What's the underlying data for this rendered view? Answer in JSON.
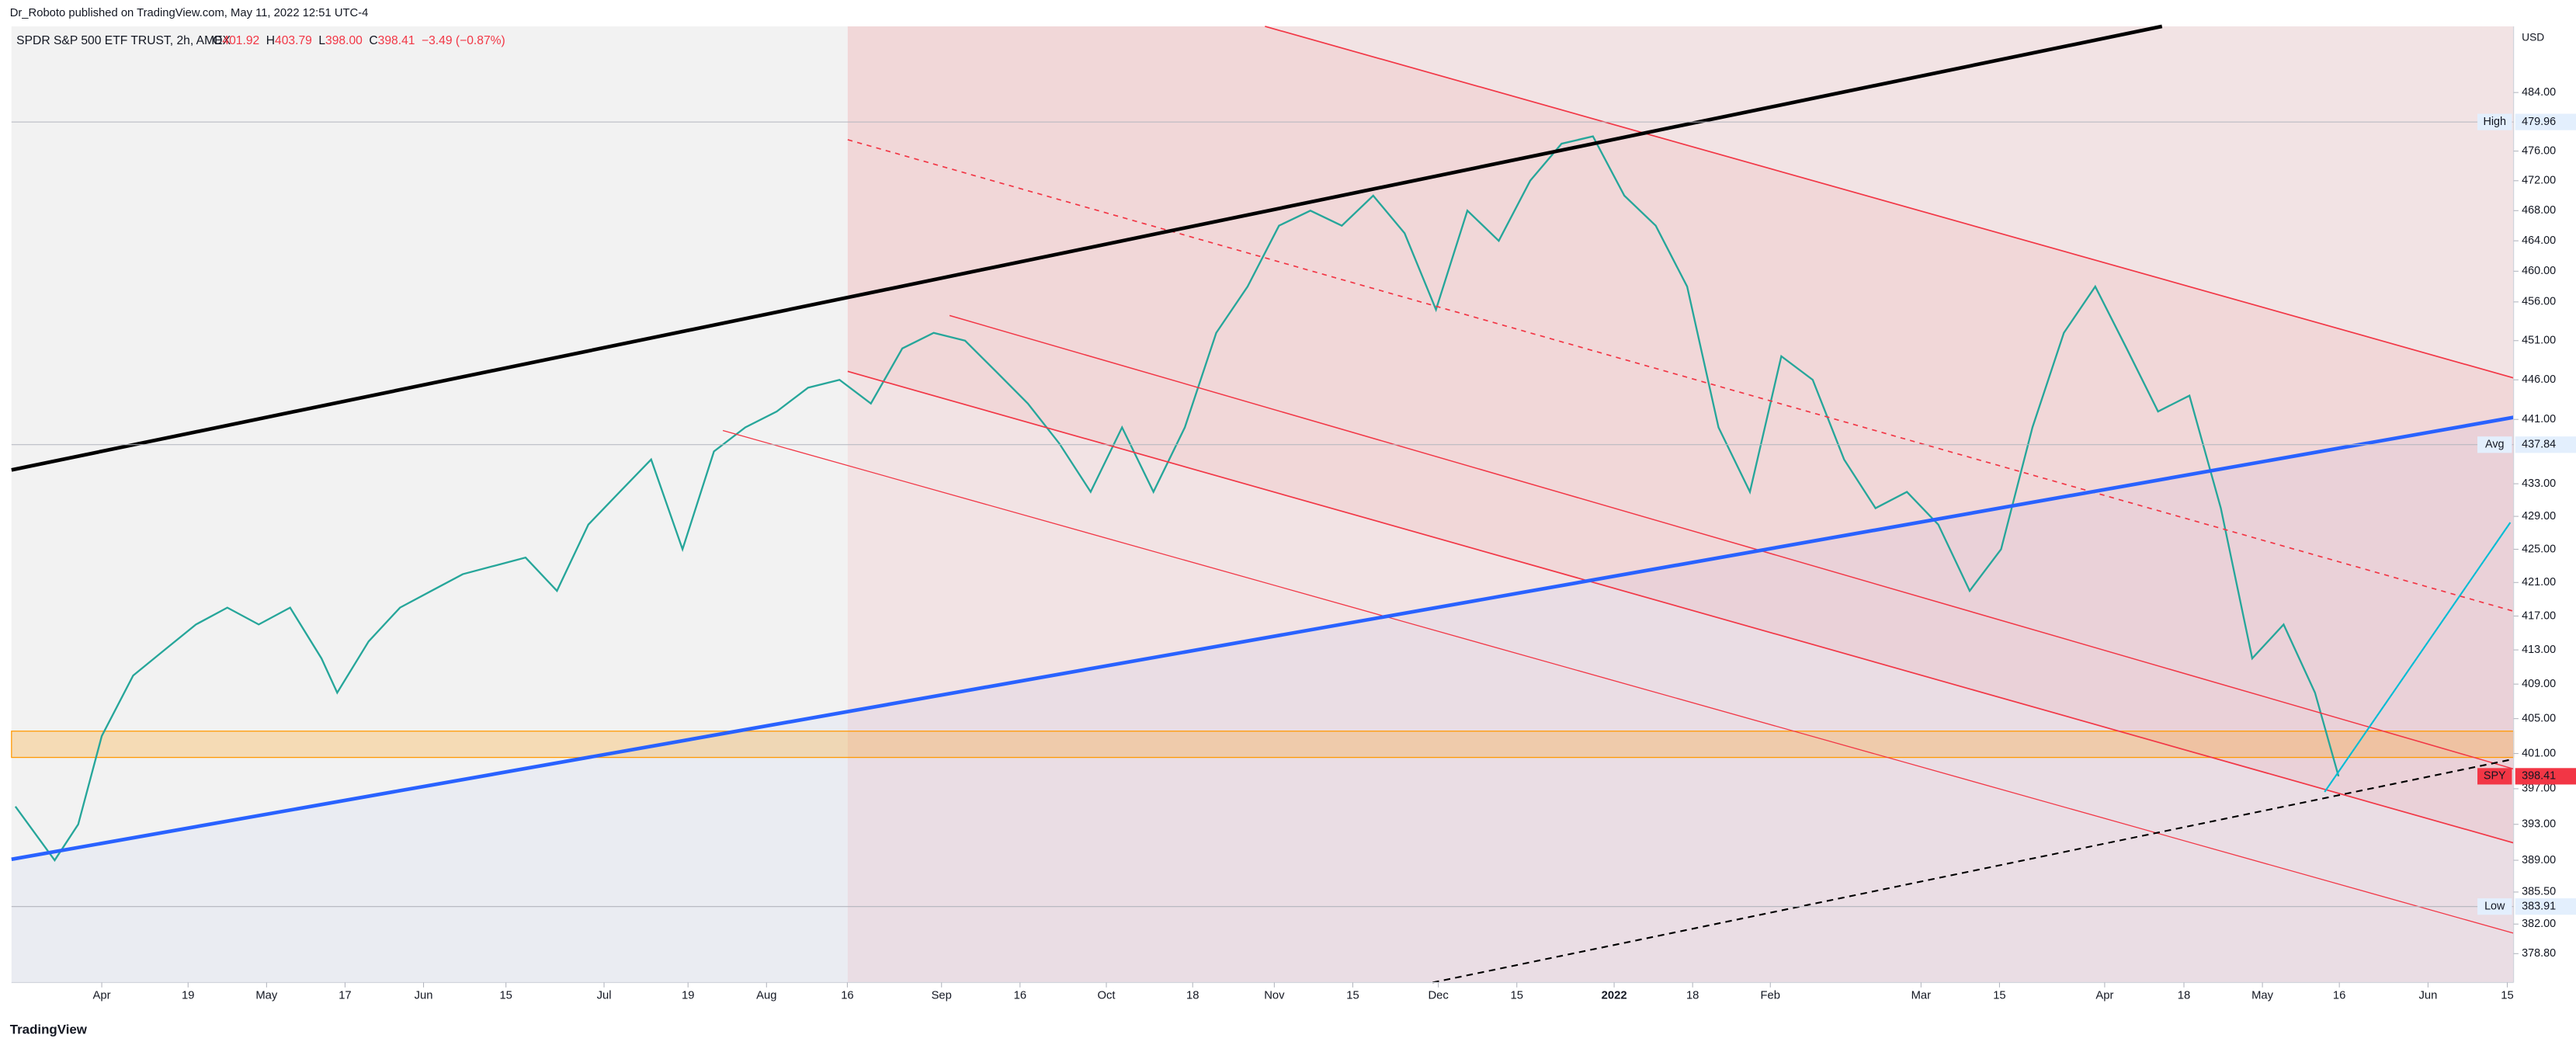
{
  "header": {
    "publisher": "Dr_Roboto published on TradingView.com, May 11, 2022 12:51 UTC-4",
    "brand": "TradingView"
  },
  "chart_data": {
    "type": "line",
    "title": "SPDR S&P 500 ETF TRUST, 2h, AMEX",
    "ohlc": [
      {
        "label": "O",
        "value": "401.92"
      },
      {
        "label": "H",
        "value": "403.79"
      },
      {
        "label": "L",
        "value": "398.00"
      },
      {
        "label": "C",
        "value": "398.41"
      }
    ],
    "change": "−3.49 (−0.87%)",
    "currency": "USD",
    "color": "#26a69a",
    "log_scale": true,
    "x": [
      -11,
      -6,
      -3,
      0,
      4,
      8,
      12,
      16,
      20,
      24,
      28,
      30,
      34,
      38,
      42,
      46,
      50,
      54,
      58,
      62,
      66,
      70,
      74,
      78,
      82,
      86,
      90,
      94,
      98,
      102,
      106,
      110,
      114,
      118,
      122,
      126,
      130,
      134,
      138,
      142,
      146,
      150,
      154,
      158,
      162,
      166,
      170,
      174,
      178,
      182,
      186,
      190,
      194,
      198,
      202,
      206,
      210,
      214,
      218,
      222,
      226,
      230,
      234,
      238,
      242,
      246,
      250,
      254,
      258,
      262,
      266,
      270,
      274,
      278,
      282,
      285
    ],
    "values": [
      395,
      389,
      393,
      403,
      410,
      413,
      416,
      418,
      416,
      418,
      412,
      408,
      414,
      418,
      420,
      422,
      423,
      424,
      420,
      428,
      432,
      436,
      425,
      437,
      440,
      442,
      445,
      446,
      443,
      450,
      452,
      451,
      447,
      443,
      438,
      432,
      440,
      432,
      440,
      452,
      458,
      466,
      468,
      466,
      470,
      465,
      455,
      468,
      464,
      472,
      477,
      478,
      470,
      466,
      458,
      440,
      432,
      449,
      446,
      436,
      430,
      432,
      428,
      420,
      425,
      440,
      452,
      458,
      450,
      442,
      444,
      430,
      412,
      416,
      408,
      398.41
    ],
    "xlim": [
      -11.5,
      307.3
    ],
    "xticks": [
      {
        "value": 0,
        "label": "Apr"
      },
      {
        "value": 11,
        "label": "19"
      },
      {
        "value": 21,
        "label": "May"
      },
      {
        "value": 31,
        "label": "17"
      },
      {
        "value": 41,
        "label": "Jun"
      },
      {
        "value": 51.5,
        "label": "15"
      },
      {
        "value": 64,
        "label": "Jul"
      },
      {
        "value": 74.7,
        "label": "19"
      },
      {
        "value": 84.7,
        "label": "Aug"
      },
      {
        "value": 95,
        "label": "16"
      },
      {
        "value": 107,
        "label": "Sep"
      },
      {
        "value": 117,
        "label": "16"
      },
      {
        "value": 128,
        "label": "Oct"
      },
      {
        "value": 139,
        "label": "18"
      },
      {
        "value": 149.4,
        "label": "Nov"
      },
      {
        "value": 159.4,
        "label": "15"
      },
      {
        "value": 170.3,
        "label": "Dec"
      },
      {
        "value": 180.3,
        "label": "15"
      },
      {
        "value": 192.7,
        "label": "2022"
      },
      {
        "value": 202.7,
        "label": "18"
      },
      {
        "value": 212.6,
        "label": "Feb"
      },
      {
        "value": 231.8,
        "label": "Mar"
      },
      {
        "value": 241.8,
        "label": "15"
      },
      {
        "value": 255.2,
        "label": "Apr"
      },
      {
        "value": 265.3,
        "label": "18"
      },
      {
        "value": 275.3,
        "label": "May"
      },
      {
        "value": 285.1,
        "label": "16"
      },
      {
        "value": 296.4,
        "label": "Jun"
      },
      {
        "value": 306.5,
        "label": "15"
      }
    ],
    "ylim": [
      375.7,
      493.2
    ],
    "yticks": [
      {
        "value": 484,
        "label": "484.00"
      },
      {
        "value": 476,
        "label": "476.00"
      },
      {
        "value": 472,
        "label": "472.00"
      },
      {
        "value": 468,
        "label": "468.00"
      },
      {
        "value": 464,
        "label": "464.00"
      },
      {
        "value": 460,
        "label": "460.00"
      },
      {
        "value": 456,
        "label": "456.00"
      },
      {
        "value": 451,
        "label": "451.00"
      },
      {
        "value": 446,
        "label": "446.00"
      },
      {
        "value": 441,
        "label": "441.00"
      },
      {
        "value": 433,
        "label": "433.00"
      },
      {
        "value": 429,
        "label": "429.00"
      },
      {
        "value": 425,
        "label": "425.00"
      },
      {
        "value": 421,
        "label": "421.00"
      },
      {
        "value": 417,
        "label": "417.00"
      },
      {
        "value": 413,
        "label": "413.00"
      },
      {
        "value": 409,
        "label": "409.00"
      },
      {
        "value": 405,
        "label": "405.00"
      },
      {
        "value": 401,
        "label": "401.00"
      },
      {
        "value": 397,
        "label": "397.00"
      },
      {
        "value": 393,
        "label": "393.00"
      },
      {
        "value": 389,
        "label": "389.00"
      },
      {
        "value": 385.5,
        "label": "385.50"
      },
      {
        "value": 382,
        "label": "382.00"
      },
      {
        "value": 378.8,
        "label": "378.80"
      }
    ],
    "price_labels": [
      {
        "label": "High",
        "value": 479.96,
        "color": "#e3effd"
      },
      {
        "label": "Avg",
        "value": 437.84,
        "color": "#e3effd"
      },
      {
        "label": "Low",
        "value": 383.91,
        "color": "#e3effd"
      },
      {
        "label": "SPY",
        "value": 398.41,
        "color": "#f23645"
      }
    ]
  }
}
